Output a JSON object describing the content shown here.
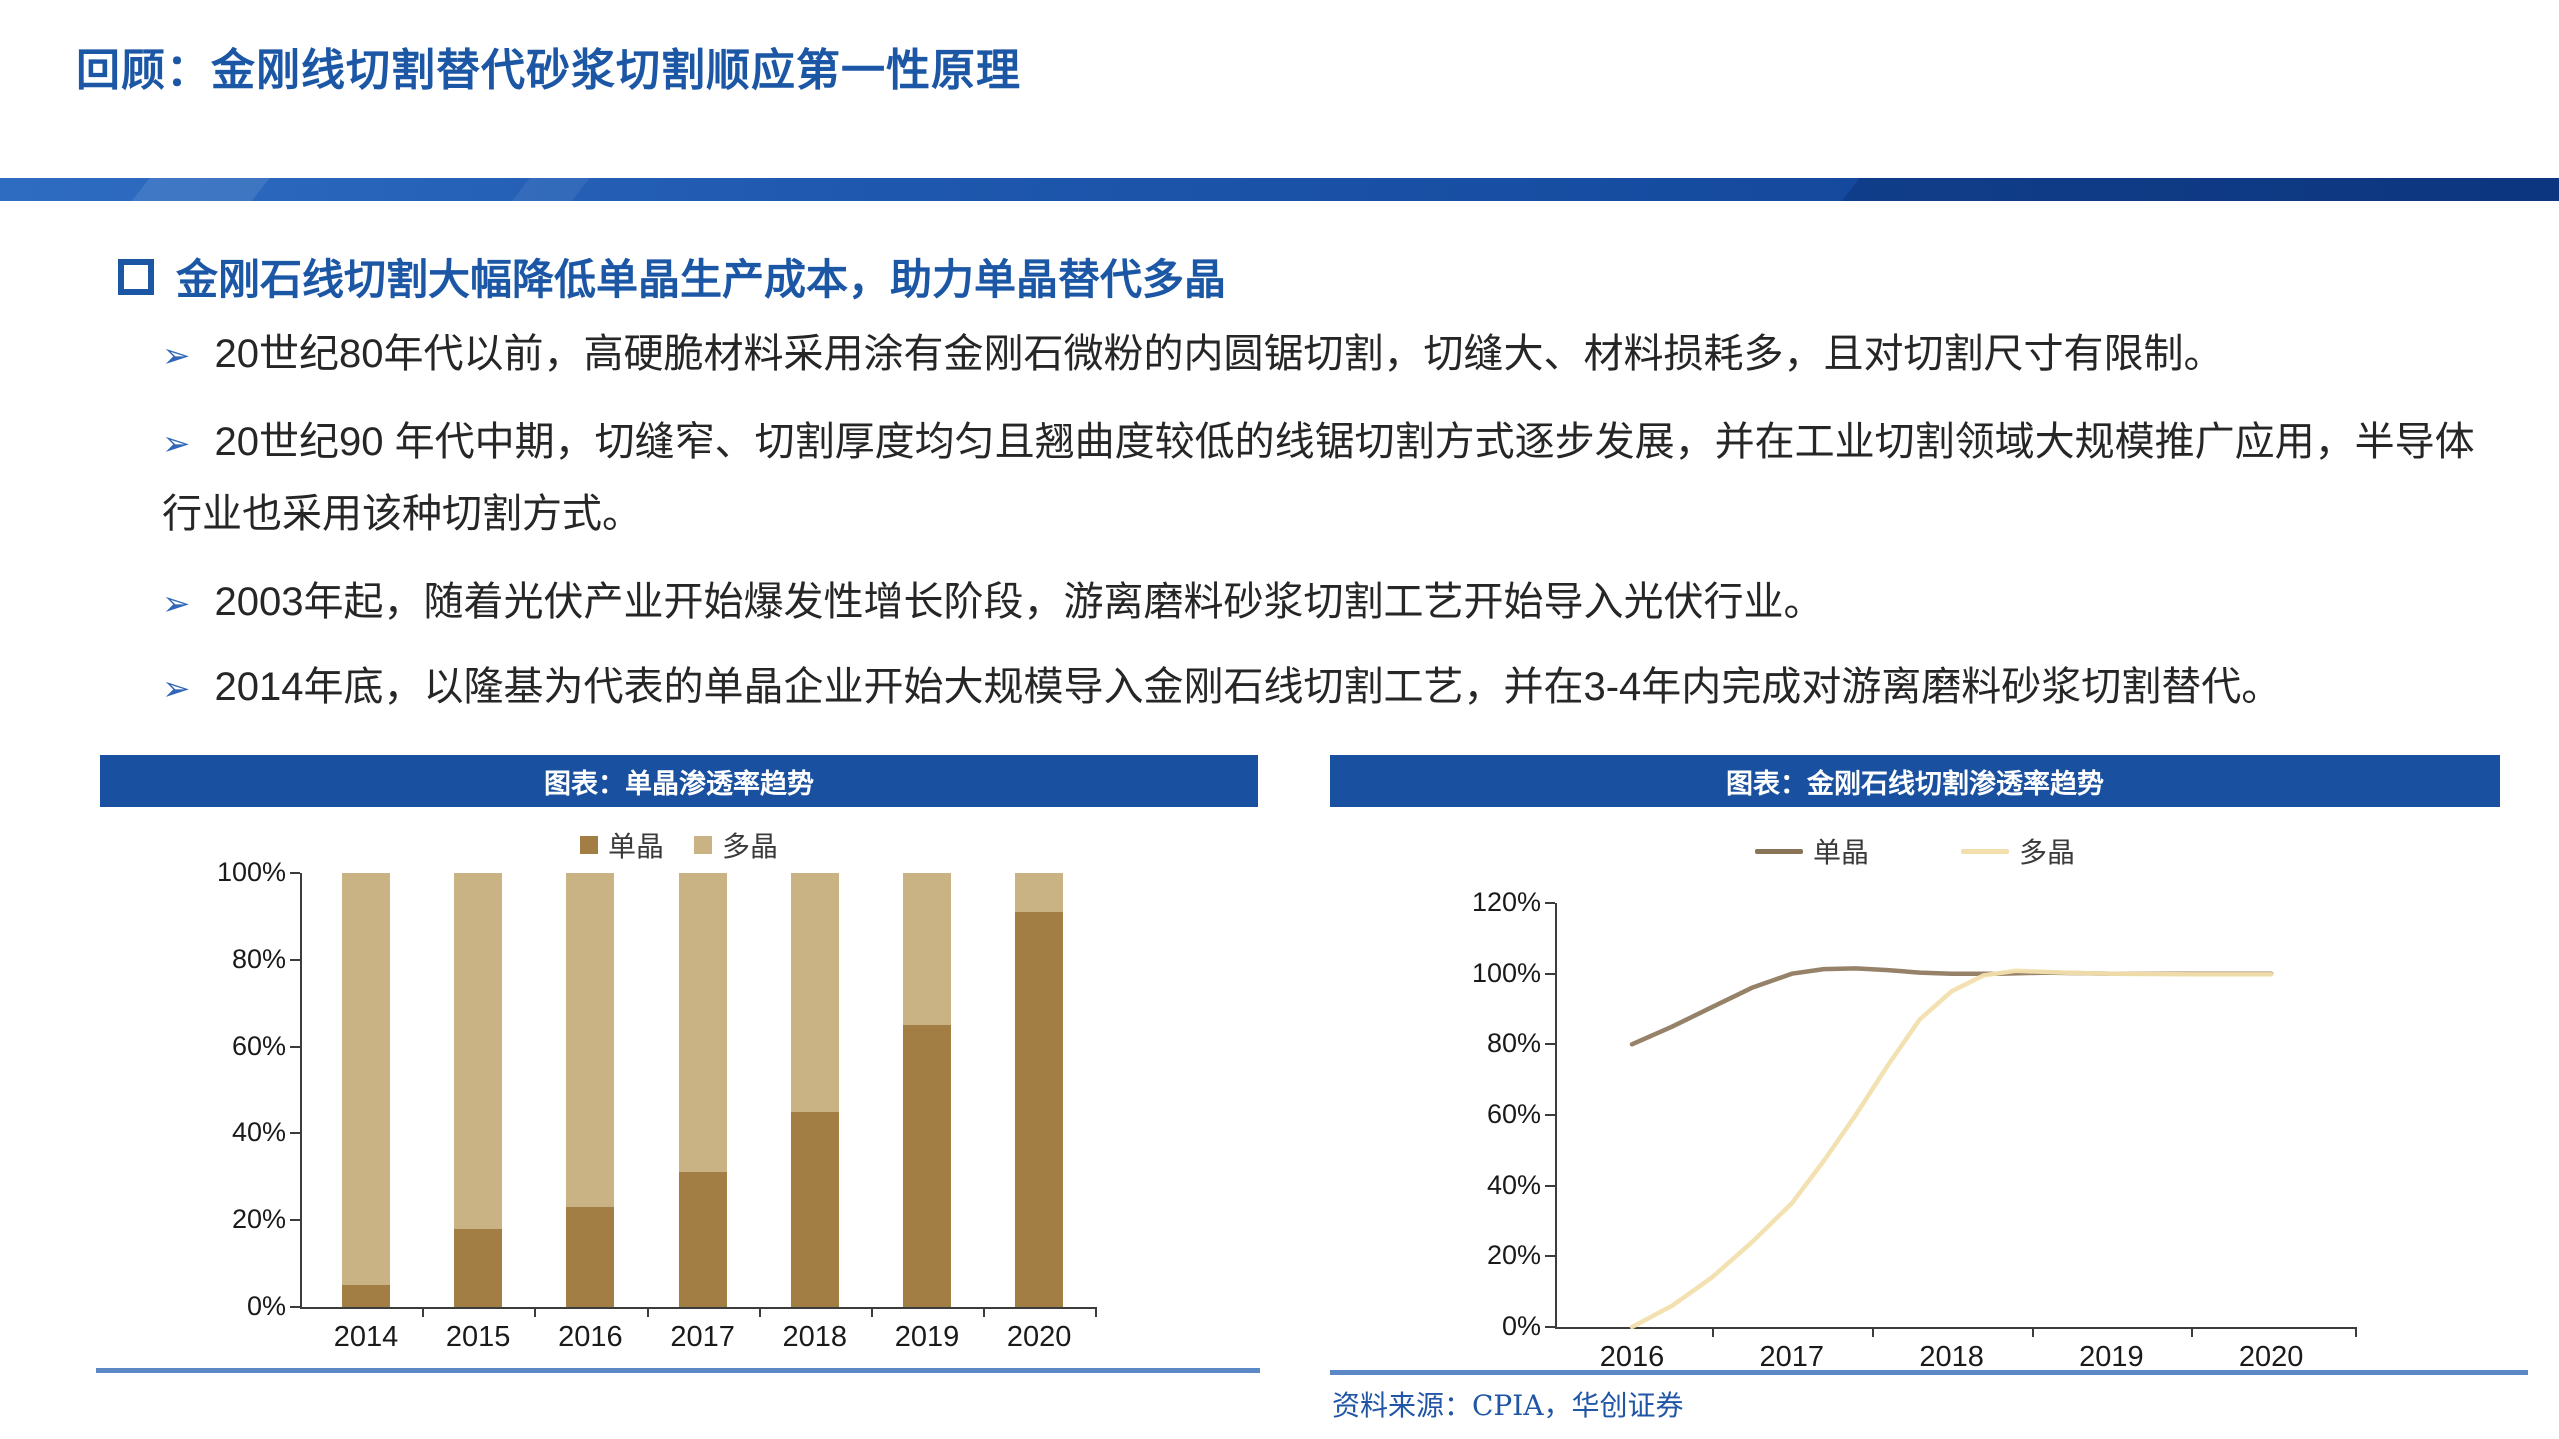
{
  "slide": {
    "title": "回顾：金刚线切割替代砂浆切割顺应第一性原理",
    "section_heading": "金刚石线切割大幅降低单晶生产成本，助力单晶替代多晶",
    "bullets": [
      "20世纪80年代以前，高硬脆材料采用涂有金刚石微粉的内圆锯切割，切缝大、材料损耗多，且对切割尺寸有限制。",
      "20世纪90 年代中期，切缝窄、切割厚度均匀且翘曲度较低的线锯切割方式逐步发展，并在工业切割领域大规模推广应用，半导体行业也采用该种切割方式。",
      "2003年起，随着光伏产业开始爆发性增长阶段，游离磨料砂浆切割工艺开始导入光伏行业。",
      "2014年底，以隆基为代表的单晶企业开始大规模导入金刚石线切割工艺，并在3-4年内完成对游离磨料砂浆切割替代。"
    ],
    "bullet_marker": "➢",
    "source_note": "资料来源：CPIA，华创证券"
  },
  "colors": {
    "accent_blue": "#1C57A5",
    "chart_header_blue": "#19509F",
    "underline_blue": "#5C88C6",
    "mono_bar": "#A27E44",
    "poly_bar": "#C9B284",
    "mono_line": "#8A7458",
    "poly_line": "#F2DFAD",
    "axis": "#3C3C3C"
  },
  "chart_data": [
    {
      "type": "bar",
      "subtype": "stacked",
      "title": "图表：单晶渗透率趋势",
      "categories": [
        "2014",
        "2015",
        "2016",
        "2017",
        "2018",
        "2019",
        "2020"
      ],
      "series": [
        {
          "name": "单晶",
          "values": [
            5,
            18,
            23,
            31,
            45,
            65,
            91
          ]
        },
        {
          "name": "多晶",
          "values": [
            95,
            82,
            77,
            69,
            55,
            35,
            9
          ]
        }
      ],
      "y_ticks": [
        "0%",
        "20%",
        "40%",
        "60%",
        "80%",
        "100%"
      ],
      "ylim": [
        0,
        100
      ],
      "legend_position": "top",
      "grid": false
    },
    {
      "type": "line",
      "title": "图表：金刚石线切割渗透率趋势",
      "x_ticks": [
        "2016",
        "2017",
        "2018",
        "2019",
        "2020"
      ],
      "y_ticks": [
        "0%",
        "20%",
        "40%",
        "60%",
        "80%",
        "100%",
        "120%"
      ],
      "ylim": [
        0,
        120
      ],
      "xlim": [
        2016,
        2020
      ],
      "legend_position": "top",
      "grid": false,
      "series": [
        {
          "name": "单晶",
          "points": [
            [
              2016,
              80
            ],
            [
              2016.25,
              85
            ],
            [
              2016.5,
              90.5
            ],
            [
              2016.75,
              96
            ],
            [
              2017,
              100
            ],
            [
              2017.2,
              101.3
            ],
            [
              2017.4,
              101.5
            ],
            [
              2017.6,
              101
            ],
            [
              2017.8,
              100.3
            ],
            [
              2018,
              100
            ],
            [
              2018.3,
              100
            ],
            [
              2018.6,
              100.3
            ],
            [
              2019,
              100
            ],
            [
              2019.5,
              100
            ],
            [
              2020,
              100
            ]
          ]
        },
        {
          "name": "多晶",
          "points": [
            [
              2016,
              0
            ],
            [
              2016.25,
              6
            ],
            [
              2016.5,
              14
            ],
            [
              2016.75,
              24
            ],
            [
              2017,
              35
            ],
            [
              2017.2,
              47
            ],
            [
              2017.4,
              60
            ],
            [
              2017.6,
              74
            ],
            [
              2017.8,
              87
            ],
            [
              2018,
              95
            ],
            [
              2018.2,
              99.5
            ],
            [
              2018.4,
              100.8
            ],
            [
              2018.7,
              100.3
            ],
            [
              2019,
              100
            ],
            [
              2019.5,
              99.8
            ],
            [
              2020,
              99.8
            ]
          ]
        }
      ]
    }
  ]
}
